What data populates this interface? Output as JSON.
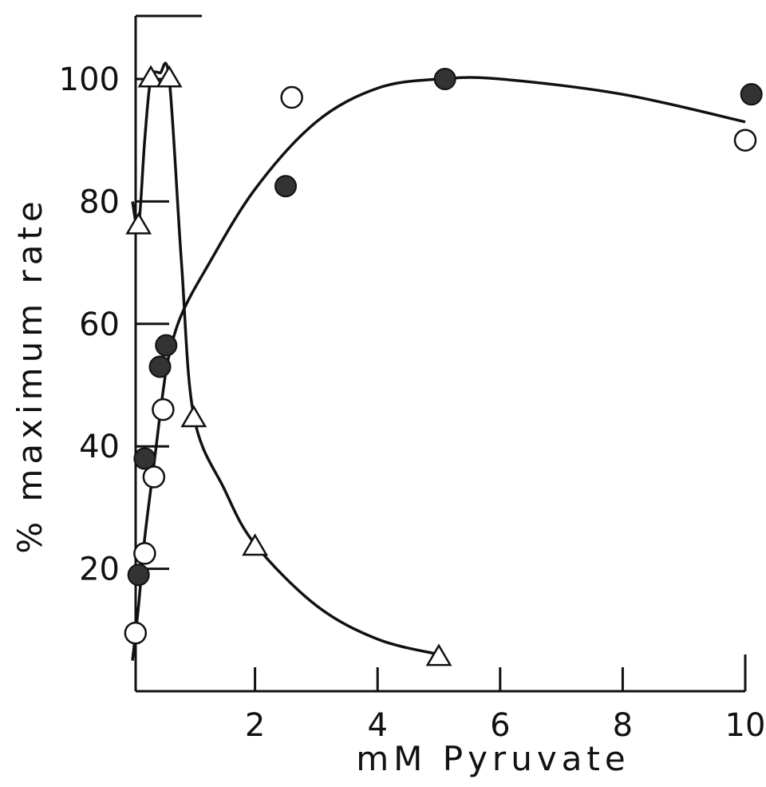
{
  "chart_data": {
    "type": "scatter",
    "title": "",
    "xlabel": "mM Pyruvate",
    "ylabel": "% maximum rate",
    "xlim": [
      0,
      10
    ],
    "ylim": [
      0,
      110
    ],
    "x_ticks": [
      2,
      4,
      6,
      8,
      10
    ],
    "y_ticks": [
      20,
      40,
      60,
      80,
      100
    ],
    "x_tick_labels": [
      "2",
      "4",
      "6",
      "8",
      "10"
    ],
    "y_tick_labels": [
      "20",
      "40",
      "60",
      "80",
      "100"
    ],
    "grid": false,
    "legend": "none",
    "series": [
      {
        "marker": "open-circle",
        "points": [
          [
            0.05,
            9.5
          ],
          [
            0.2,
            22.5
          ],
          [
            0.35,
            35
          ],
          [
            0.5,
            46
          ],
          [
            2.6,
            97
          ],
          [
            10.0,
            90
          ]
        ]
      },
      {
        "marker": "filled-circle",
        "points": [
          [
            0.1,
            19
          ],
          [
            0.2,
            38
          ],
          [
            0.45,
            53
          ],
          [
            0.55,
            56.5
          ],
          [
            2.5,
            82.5
          ],
          [
            5.1,
            100
          ],
          [
            10.1,
            97.5
          ]
        ]
      },
      {
        "marker": "open-triangle",
        "points": [
          [
            0.1,
            76
          ],
          [
            0.3,
            100
          ],
          [
            0.6,
            100
          ],
          [
            1.0,
            44.5
          ],
          [
            2.0,
            23.5
          ],
          [
            5.0,
            5.5
          ]
        ]
      }
    ],
    "curves": [
      {
        "for_series": "open-circle + filled-circle",
        "points": [
          [
            0.0,
            5
          ],
          [
            0.1,
            14
          ],
          [
            0.2,
            25
          ],
          [
            0.35,
            37
          ],
          [
            0.5,
            49
          ],
          [
            0.6,
            55
          ],
          [
            0.8,
            61.5
          ],
          [
            1.2,
            69
          ],
          [
            2.0,
            82
          ],
          [
            3.0,
            93
          ],
          [
            4.0,
            98.5
          ],
          [
            5.0,
            100
          ],
          [
            6.0,
            100
          ],
          [
            8.0,
            97.5
          ],
          [
            10.0,
            93
          ]
        ]
      },
      {
        "for_series": "open-triangle",
        "points": [
          [
            0.0,
            80
          ],
          [
            0.1,
            76
          ],
          [
            0.2,
            90
          ],
          [
            0.3,
            100
          ],
          [
            0.45,
            101
          ],
          [
            0.6,
            100
          ],
          [
            0.8,
            70
          ],
          [
            1.0,
            45
          ],
          [
            1.5,
            33
          ],
          [
            2.0,
            24
          ],
          [
            3.0,
            14
          ],
          [
            4.0,
            8.5
          ],
          [
            5.0,
            6
          ]
        ]
      }
    ]
  }
}
